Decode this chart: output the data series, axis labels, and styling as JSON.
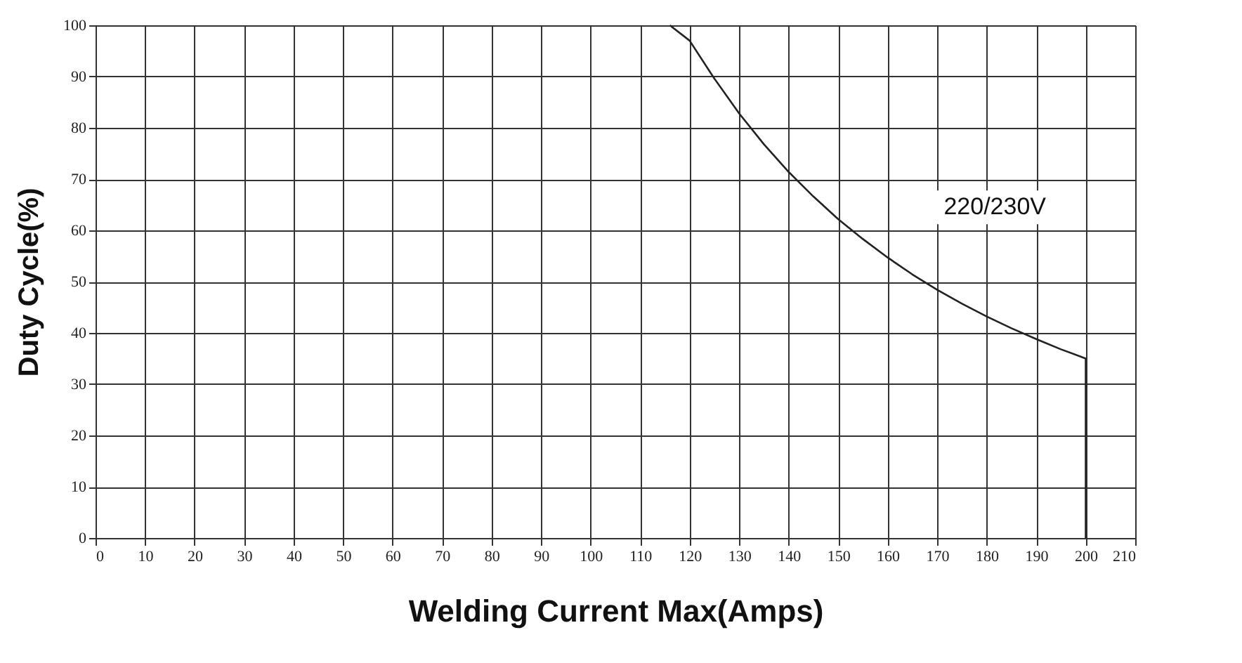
{
  "chart_data": {
    "type": "line",
    "xlabel": "Welding Current Max(Amps)",
    "ylabel": "Duty Cycle(%)",
    "annotations": [
      "220/230V"
    ],
    "series": [
      {
        "color": "#222222",
        "x": [
          116,
          120,
          125,
          130,
          135,
          140,
          145,
          150,
          155,
          160,
          165,
          170,
          175,
          180,
          185,
          190,
          195,
          200,
          200
        ],
        "values": [
          100,
          97,
          89.6,
          82.8,
          76.8,
          71.4,
          66.6,
          62.2,
          58.3,
          54.7,
          51.4,
          48.4,
          45.7,
          43.2,
          40.9,
          38.8,
          36.8,
          35,
          0
        ]
      }
    ],
    "xlim": [
      0,
      210
    ],
    "xticks": [
      0,
      10,
      20,
      30,
      40,
      50,
      60,
      70,
      80,
      90,
      100,
      110,
      120,
      130,
      140,
      150,
      160,
      170,
      180,
      190,
      200,
      210
    ],
    "ylim": [
      0,
      100
    ],
    "yticks": [
      0,
      10,
      20,
      30,
      40,
      50,
      60,
      70,
      80,
      90,
      100
    ],
    "grid": true,
    "marker": "none",
    "line_style": "solid"
  }
}
